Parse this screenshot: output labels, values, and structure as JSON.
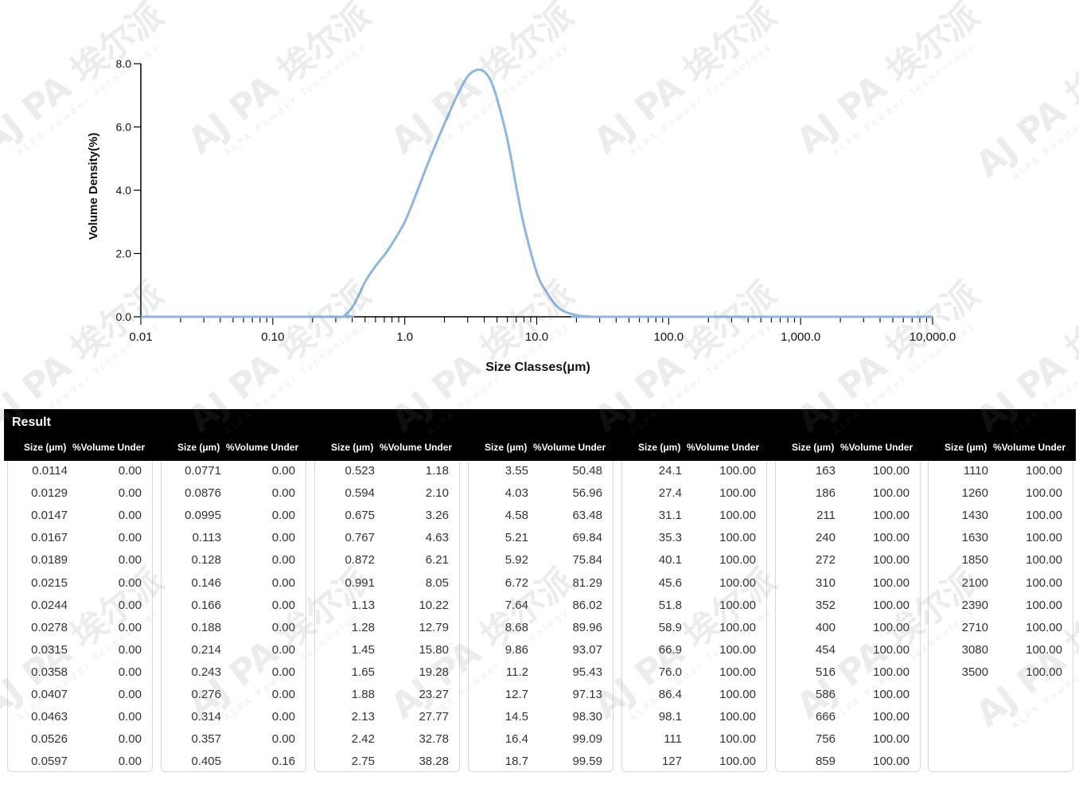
{
  "chart_data": {
    "type": "line",
    "ylabel": "Volume Density(%)",
    "xlabel": "Size Classes(μm)",
    "x_scale": "log",
    "xlim": [
      0.01,
      10000
    ],
    "ylim": [
      0,
      8
    ],
    "x_tick_labels": [
      "0.01",
      "0.10",
      "1.0",
      "10.0",
      "100.0",
      "1,000.0",
      "10,000.0"
    ],
    "y_tick_labels": [
      "0.0",
      "2.0",
      "4.0",
      "6.0",
      "8.0"
    ],
    "line_color": "#8db6e2",
    "series": [
      {
        "x": [
          0.01,
          0.3,
          0.35,
          0.4,
          0.45,
          0.5,
          0.6,
          0.7,
          0.8,
          1.0,
          1.2,
          1.5,
          2.0,
          2.5,
          3.0,
          3.5,
          4.0,
          4.5,
          5.0,
          6.0,
          7.0,
          8.0,
          10.0,
          12.0,
          15.0,
          20.0,
          25.0,
          30.0,
          10000
        ],
        "y": [
          0,
          0,
          0.05,
          0.3,
          0.7,
          1.1,
          1.6,
          1.95,
          2.3,
          3.0,
          3.8,
          4.85,
          6.1,
          7.0,
          7.6,
          7.8,
          7.75,
          7.45,
          6.9,
          5.6,
          4.1,
          2.9,
          1.4,
          0.75,
          0.25,
          0.05,
          0.01,
          0,
          0
        ]
      }
    ]
  },
  "table": {
    "title": "Result",
    "size_header": "Size (μm)",
    "volume_header": "%Volume Under",
    "groups": [
      [
        [
          "0.0114",
          "0.00"
        ],
        [
          "0.0129",
          "0.00"
        ],
        [
          "0.0147",
          "0.00"
        ],
        [
          "0.0167",
          "0.00"
        ],
        [
          "0.0189",
          "0.00"
        ],
        [
          "0.0215",
          "0.00"
        ],
        [
          "0.0244",
          "0.00"
        ],
        [
          "0.0278",
          "0.00"
        ],
        [
          "0.0315",
          "0.00"
        ],
        [
          "0.0358",
          "0.00"
        ],
        [
          "0.0407",
          "0.00"
        ],
        [
          "0.0463",
          "0.00"
        ],
        [
          "0.0526",
          "0.00"
        ],
        [
          "0.0597",
          "0.00"
        ]
      ],
      [
        [
          "0.0771",
          "0.00"
        ],
        [
          "0.0876",
          "0.00"
        ],
        [
          "0.0995",
          "0.00"
        ],
        [
          "0.113",
          "0.00"
        ],
        [
          "0.128",
          "0.00"
        ],
        [
          "0.146",
          "0.00"
        ],
        [
          "0.166",
          "0.00"
        ],
        [
          "0.188",
          "0.00"
        ],
        [
          "0.214",
          "0.00"
        ],
        [
          "0.243",
          "0.00"
        ],
        [
          "0.276",
          "0.00"
        ],
        [
          "0.314",
          "0.00"
        ],
        [
          "0.357",
          "0.00"
        ],
        [
          "0.405",
          "0.16"
        ]
      ],
      [
        [
          "0.523",
          "1.18"
        ],
        [
          "0.594",
          "2.10"
        ],
        [
          "0.675",
          "3.26"
        ],
        [
          "0.767",
          "4.63"
        ],
        [
          "0.872",
          "6.21"
        ],
        [
          "0.991",
          "8.05"
        ],
        [
          "1.13",
          "10.22"
        ],
        [
          "1.28",
          "12.79"
        ],
        [
          "1.45",
          "15.80"
        ],
        [
          "1.65",
          "19.28"
        ],
        [
          "1.88",
          "23.27"
        ],
        [
          "2.13",
          "27.77"
        ],
        [
          "2.42",
          "32.78"
        ],
        [
          "2.75",
          "38.28"
        ]
      ],
      [
        [
          "3.55",
          "50.48"
        ],
        [
          "4.03",
          "56.96"
        ],
        [
          "4.58",
          "63.48"
        ],
        [
          "5.21",
          "69.84"
        ],
        [
          "5.92",
          "75.84"
        ],
        [
          "6.72",
          "81.29"
        ],
        [
          "7.64",
          "86.02"
        ],
        [
          "8.68",
          "89.96"
        ],
        [
          "9.86",
          "93.07"
        ],
        [
          "11.2",
          "95.43"
        ],
        [
          "12.7",
          "97.13"
        ],
        [
          "14.5",
          "98.30"
        ],
        [
          "16.4",
          "99.09"
        ],
        [
          "18.7",
          "99.59"
        ]
      ],
      [
        [
          "24.1",
          "100.00"
        ],
        [
          "27.4",
          "100.00"
        ],
        [
          "31.1",
          "100.00"
        ],
        [
          "35.3",
          "100.00"
        ],
        [
          "40.1",
          "100.00"
        ],
        [
          "45.6",
          "100.00"
        ],
        [
          "51.8",
          "100.00"
        ],
        [
          "58.9",
          "100.00"
        ],
        [
          "66.9",
          "100.00"
        ],
        [
          "76.0",
          "100.00"
        ],
        [
          "86.4",
          "100.00"
        ],
        [
          "98.1",
          "100.00"
        ],
        [
          "111",
          "100.00"
        ],
        [
          "127",
          "100.00"
        ]
      ],
      [
        [
          "163",
          "100.00"
        ],
        [
          "186",
          "100.00"
        ],
        [
          "211",
          "100.00"
        ],
        [
          "240",
          "100.00"
        ],
        [
          "272",
          "100.00"
        ],
        [
          "310",
          "100.00"
        ],
        [
          "352",
          "100.00"
        ],
        [
          "400",
          "100.00"
        ],
        [
          "454",
          "100.00"
        ],
        [
          "516",
          "100.00"
        ],
        [
          "586",
          "100.00"
        ],
        [
          "666",
          "100.00"
        ],
        [
          "756",
          "100.00"
        ],
        [
          "859",
          "100.00"
        ]
      ],
      [
        [
          "1110",
          "100.00"
        ],
        [
          "1260",
          "100.00"
        ],
        [
          "1430",
          "100.00"
        ],
        [
          "1630",
          "100.00"
        ],
        [
          "1850",
          "100.00"
        ],
        [
          "2100",
          "100.00"
        ],
        [
          "2390",
          "100.00"
        ],
        [
          "2710",
          "100.00"
        ],
        [
          "3080",
          "100.00"
        ],
        [
          "3500",
          "100.00"
        ]
      ]
    ]
  },
  "watermark": {
    "text": "AJ PA 埃尔派",
    "subtext": "ALPA Powder Technology"
  }
}
